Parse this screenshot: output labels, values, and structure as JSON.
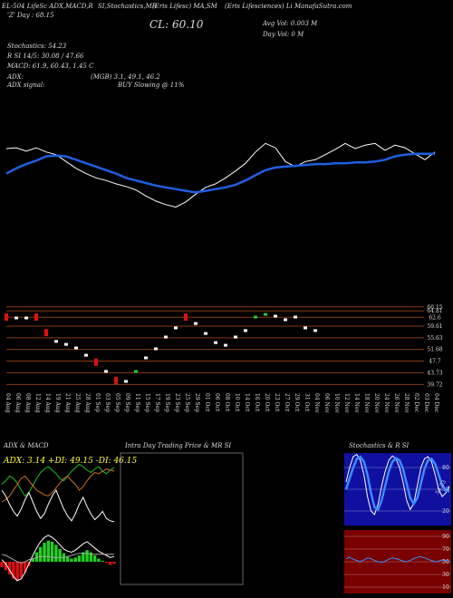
{
  "chart_data": [
    {
      "type": "line",
      "annotations": [
        "EL-504 LifeSc ADX,MACD,R",
        "SI,Stochastics,MR",
        "(Eris Lifesc) MA,SM",
        "(Eris Lifesciences) Li ManafaSutra.com",
        "'Z' Day : 68.15",
        "CL: 60.10",
        "Avg Vol: 0.003 M",
        "Day Vol: 0  M",
        "Stochastics: 54.23",
        "R      SI 14/5: 30.08 / 47.66",
        "MACD: 61.9, 60.43, 1.45 C",
        "ADX:",
        "(MGB) 3.1, 49.1, 46.2",
        "ADX  signal:",
        "BUY Slowing @ 11%"
      ],
      "categories": [
        "04 Aug",
        "06 Aug",
        "08 Aug",
        "12 Aug",
        "14 Aug",
        "19 Aug",
        "21 Aug",
        "25 Aug",
        "28 Aug",
        "01 Sep",
        "03 Sep",
        "05 Sep",
        "09 Sep",
        "11 Sep",
        "15 Sep",
        "17 Sep",
        "19 Sep",
        "23 Sep",
        "25 Sep",
        "29 Sep",
        "01 Oct",
        "06 Oct",
        "08 Oct",
        "10 Oct",
        "14 Oct",
        "16 Oct",
        "20 Oct",
        "23 Oct",
        "27 Oct",
        "29 Oct",
        "31 Oct",
        "04 Nov",
        "06 Nov",
        "10 Nov",
        "12 Nov",
        "14 Nov",
        "18 Nov",
        "20 Nov",
        "24 Nov",
        "26 Nov",
        "28 Nov",
        "02 Dec",
        "03 Dec",
        "04 Dec"
      ],
      "series": [
        {
          "name": "Price",
          "color": "#ffffff",
          "values": [
            80,
            81,
            77,
            81,
            76,
            73,
            65,
            57,
            51,
            46,
            43,
            39,
            36,
            32,
            25,
            19,
            15,
            12,
            18,
            27,
            35,
            39,
            46,
            54,
            63,
            76,
            86,
            81,
            65,
            59,
            65,
            67,
            73,
            79,
            86,
            80,
            84,
            86,
            78,
            84,
            81,
            74,
            67,
            76
          ]
        },
        {
          "name": "MA",
          "color": "#1f5fe0",
          "values": [
            51,
            57,
            62,
            66,
            71,
            72,
            71,
            67,
            63,
            59,
            55,
            51,
            46,
            43,
            40,
            37,
            35,
            33,
            31,
            29,
            31,
            33,
            35,
            38,
            43,
            49,
            55,
            58,
            59,
            60,
            61,
            62,
            62,
            63,
            63,
            64,
            64,
            65,
            67,
            71,
            73,
            74,
            74,
            74
          ]
        }
      ],
      "ylim": [
        0,
        100
      ]
    },
    {
      "type": "candle",
      "values": [
        62.7,
        62.4,
        62.4,
        62.7,
        57.4,
        54.4,
        53.4,
        52.2,
        49.7,
        47.3,
        44.2,
        41.1,
        40.8,
        44.2,
        48.8,
        51.9,
        55.9,
        59.0,
        62.7,
        60.5,
        57.1,
        54.0,
        53.1,
        55.9,
        58.1,
        62.7,
        63.6,
        63.0,
        61.8,
        62.7,
        59.0,
        58.1,
        null,
        null,
        null,
        null,
        null,
        null,
        null,
        null,
        null,
        null,
        null,
        null
      ],
      "colors": [
        "#e01010",
        "#ffffff",
        "#ffffff",
        "#e01010",
        "#e01010",
        "#ffffff",
        "#ffffff",
        "#ffffff",
        "#ffffff",
        "#e01010",
        "#ffffff",
        "#e01010",
        "#ffffff",
        "#20d020",
        "#ffffff",
        "#ffffff",
        "#ffffff",
        "#ffffff",
        "#e01010",
        "#ffffff",
        "#ffffff",
        "#ffffff",
        "#ffffff",
        "#ffffff",
        "#ffffff",
        "#20d020",
        "#20d020",
        "#ffffff",
        "#ffffff",
        "#ffffff",
        "#ffffff",
        "#ffffff",
        null,
        null,
        null,
        null,
        null,
        null,
        null,
        null,
        null,
        null,
        null,
        null
      ],
      "ylim": [
        38,
        67
      ],
      "yticks": [
        66.15,
        64.81,
        62.6,
        59.61,
        55.63,
        51.68,
        47.7,
        43.73,
        39.72
      ],
      "grid_color": "#8a3a10"
    },
    {
      "type": "line",
      "title": "ADX  & MACD",
      "subtitle": "ADX: 3.14 +DI: 49.15 -DI: 46.15",
      "series": [
        {
          "name": "+DI",
          "color": "#20c020",
          "values": [
            35,
            38,
            42,
            40,
            36,
            30,
            25,
            28,
            34,
            40,
            45,
            48,
            50,
            47,
            44,
            40,
            38,
            42,
            46,
            49,
            52,
            50,
            47,
            45,
            48,
            50,
            46,
            44,
            47,
            49.15
          ]
        },
        {
          "name": "-DI",
          "color": "#d07020",
          "values": [
            20,
            22,
            25,
            30,
            35,
            40,
            42,
            38,
            34,
            30,
            28,
            26,
            25,
            28,
            32,
            36,
            40,
            42,
            38,
            35,
            30,
            33,
            38,
            42,
            45,
            44,
            46,
            48,
            47,
            46.15
          ]
        },
        {
          "name": "ADX",
          "color": "#ffffff",
          "values": [
            30,
            25,
            18,
            12,
            8,
            14,
            22,
            28,
            20,
            12,
            6,
            10,
            18,
            25,
            30,
            22,
            14,
            8,
            4,
            10,
            18,
            24,
            16,
            10,
            5,
            8,
            12,
            6,
            4,
            3.14
          ]
        }
      ],
      "ylim": [
        0,
        60
      ]
    },
    {
      "type": "macd",
      "histogram": [
        -0.5,
        -0.8,
        -1.2,
        -1.6,
        -1.8,
        -1.5,
        -1.0,
        -0.4,
        0.3,
        0.9,
        1.4,
        1.8,
        2.0,
        1.9,
        1.6,
        1.2,
        0.8,
        0.5,
        0.3,
        0.4,
        0.6,
        0.9,
        1.1,
        0.9,
        0.6,
        0.3,
        0.1,
        -0.1,
        -0.3,
        -0.2
      ],
      "positive_color": "#20d020",
      "negative_color": "#e01010",
      "series": [
        {
          "name": "MACD",
          "color": "#ffffff",
          "values": [
            0.2,
            -0.2,
            -0.8,
            -1.4,
            -1.8,
            -1.6,
            -1.0,
            -0.2,
            0.6,
            1.3,
            1.9,
            2.3,
            2.5,
            2.3,
            2.0,
            1.6,
            1.2,
            1.0,
            0.9,
            1.1,
            1.4,
            1.7,
            1.9,
            1.6,
            1.3,
            1.0,
            0.8,
            0.6,
            0.4,
            0.5
          ]
        },
        {
          "name": "Signal",
          "color": "#aaaaaa",
          "values": [
            0.7,
            0.6,
            0.4,
            0.2,
            0,
            -0.1,
            0,
            0.2,
            0.3,
            0.4,
            0.5,
            0.5,
            0.5,
            0.4,
            0.4,
            0.4,
            0.4,
            0.5,
            0.6,
            0.7,
            0.8,
            0.8,
            0.8,
            0.7,
            0.7,
            0.7,
            0.7,
            0.7,
            0.7,
            0.7
          ]
        }
      ],
      "ylim": [
        -3,
        3
      ]
    },
    {
      "type": "line",
      "title": "Intra  Day Trading Price  & MR  SI",
      "series": []
    },
    {
      "type": "line",
      "title": "Stochastics & R  SI",
      "background": "#1010a0",
      "series": [
        {
          "name": "%K",
          "color": "#ffffff",
          "values": [
            60,
            80,
            95,
            98,
            90,
            70,
            40,
            20,
            15,
            30,
            55,
            75,
            90,
            96,
            92,
            80,
            60,
            35,
            22,
            30,
            55,
            80,
            92,
            95,
            88,
            70,
            50,
            40,
            45,
            54.23
          ]
        },
        {
          "name": "%D",
          "color": "#3a8cff",
          "values": [
            50,
            65,
            80,
            92,
            95,
            88,
            70,
            45,
            25,
            22,
            35,
            55,
            75,
            88,
            93,
            90,
            78,
            58,
            38,
            30,
            38,
            58,
            78,
            90,
            92,
            85,
            70,
            55,
            48,
            47
          ]
        }
      ],
      "ylim": [
        0,
        100
      ],
      "yticks": [
        20,
        50,
        80
      ]
    },
    {
      "type": "line",
      "background": "#7a0000",
      "series": [
        {
          "name": "RSI",
          "color": "#3a8cff",
          "values": [
            55,
            57,
            54,
            52,
            50,
            53,
            56,
            55,
            52,
            50,
            49,
            51,
            54,
            56,
            55,
            53,
            51,
            50,
            52,
            55,
            57,
            58,
            56,
            54,
            52,
            50,
            51,
            53,
            52,
            51
          ]
        }
      ],
      "ylim": [
        0,
        100
      ],
      "yticks": [
        10,
        30,
        50,
        70,
        90
      ]
    }
  ]
}
